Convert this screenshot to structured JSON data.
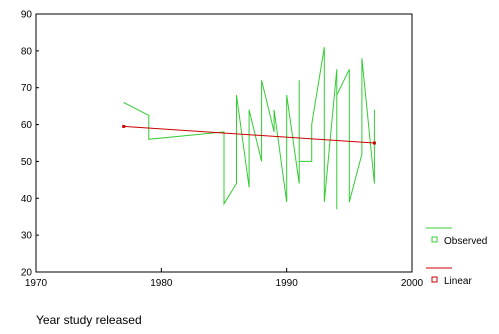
{
  "chart_data": {
    "type": "line",
    "xlabel": "Year study released",
    "xlim": [
      1970,
      2000
    ],
    "ylim": [
      20,
      90
    ],
    "x_ticks": [
      1970,
      1980,
      1990,
      2000
    ],
    "y_ticks": [
      20,
      30,
      40,
      50,
      60,
      70,
      80,
      90
    ],
    "grid": false,
    "legend_position": "bottom-right",
    "series": [
      {
        "name": "Observed",
        "color": "#33cc33",
        "x": [
          1977,
          1979,
          1979,
          1985,
          1985,
          1986,
          1986,
          1987,
          1987,
          1988,
          1988,
          1989,
          1989,
          1990,
          1990,
          1991,
          1991,
          1991,
          1992,
          1992,
          1993,
          1993,
          1994,
          1994,
          1994,
          1995,
          1995,
          1996,
          1996,
          1997,
          1997
        ],
        "y": [
          66,
          62.5,
          56,
          58,
          38.5,
          44,
          68,
          43,
          64,
          50,
          72,
          58,
          64,
          39,
          68,
          44,
          72,
          50,
          50,
          60,
          81,
          39,
          75,
          37,
          68,
          75,
          39,
          52,
          78,
          44,
          64
        ]
      },
      {
        "name": "Linear",
        "color": "#cc0000",
        "x": [
          1977,
          1997
        ],
        "y": [
          59.5,
          55
        ]
      }
    ]
  }
}
